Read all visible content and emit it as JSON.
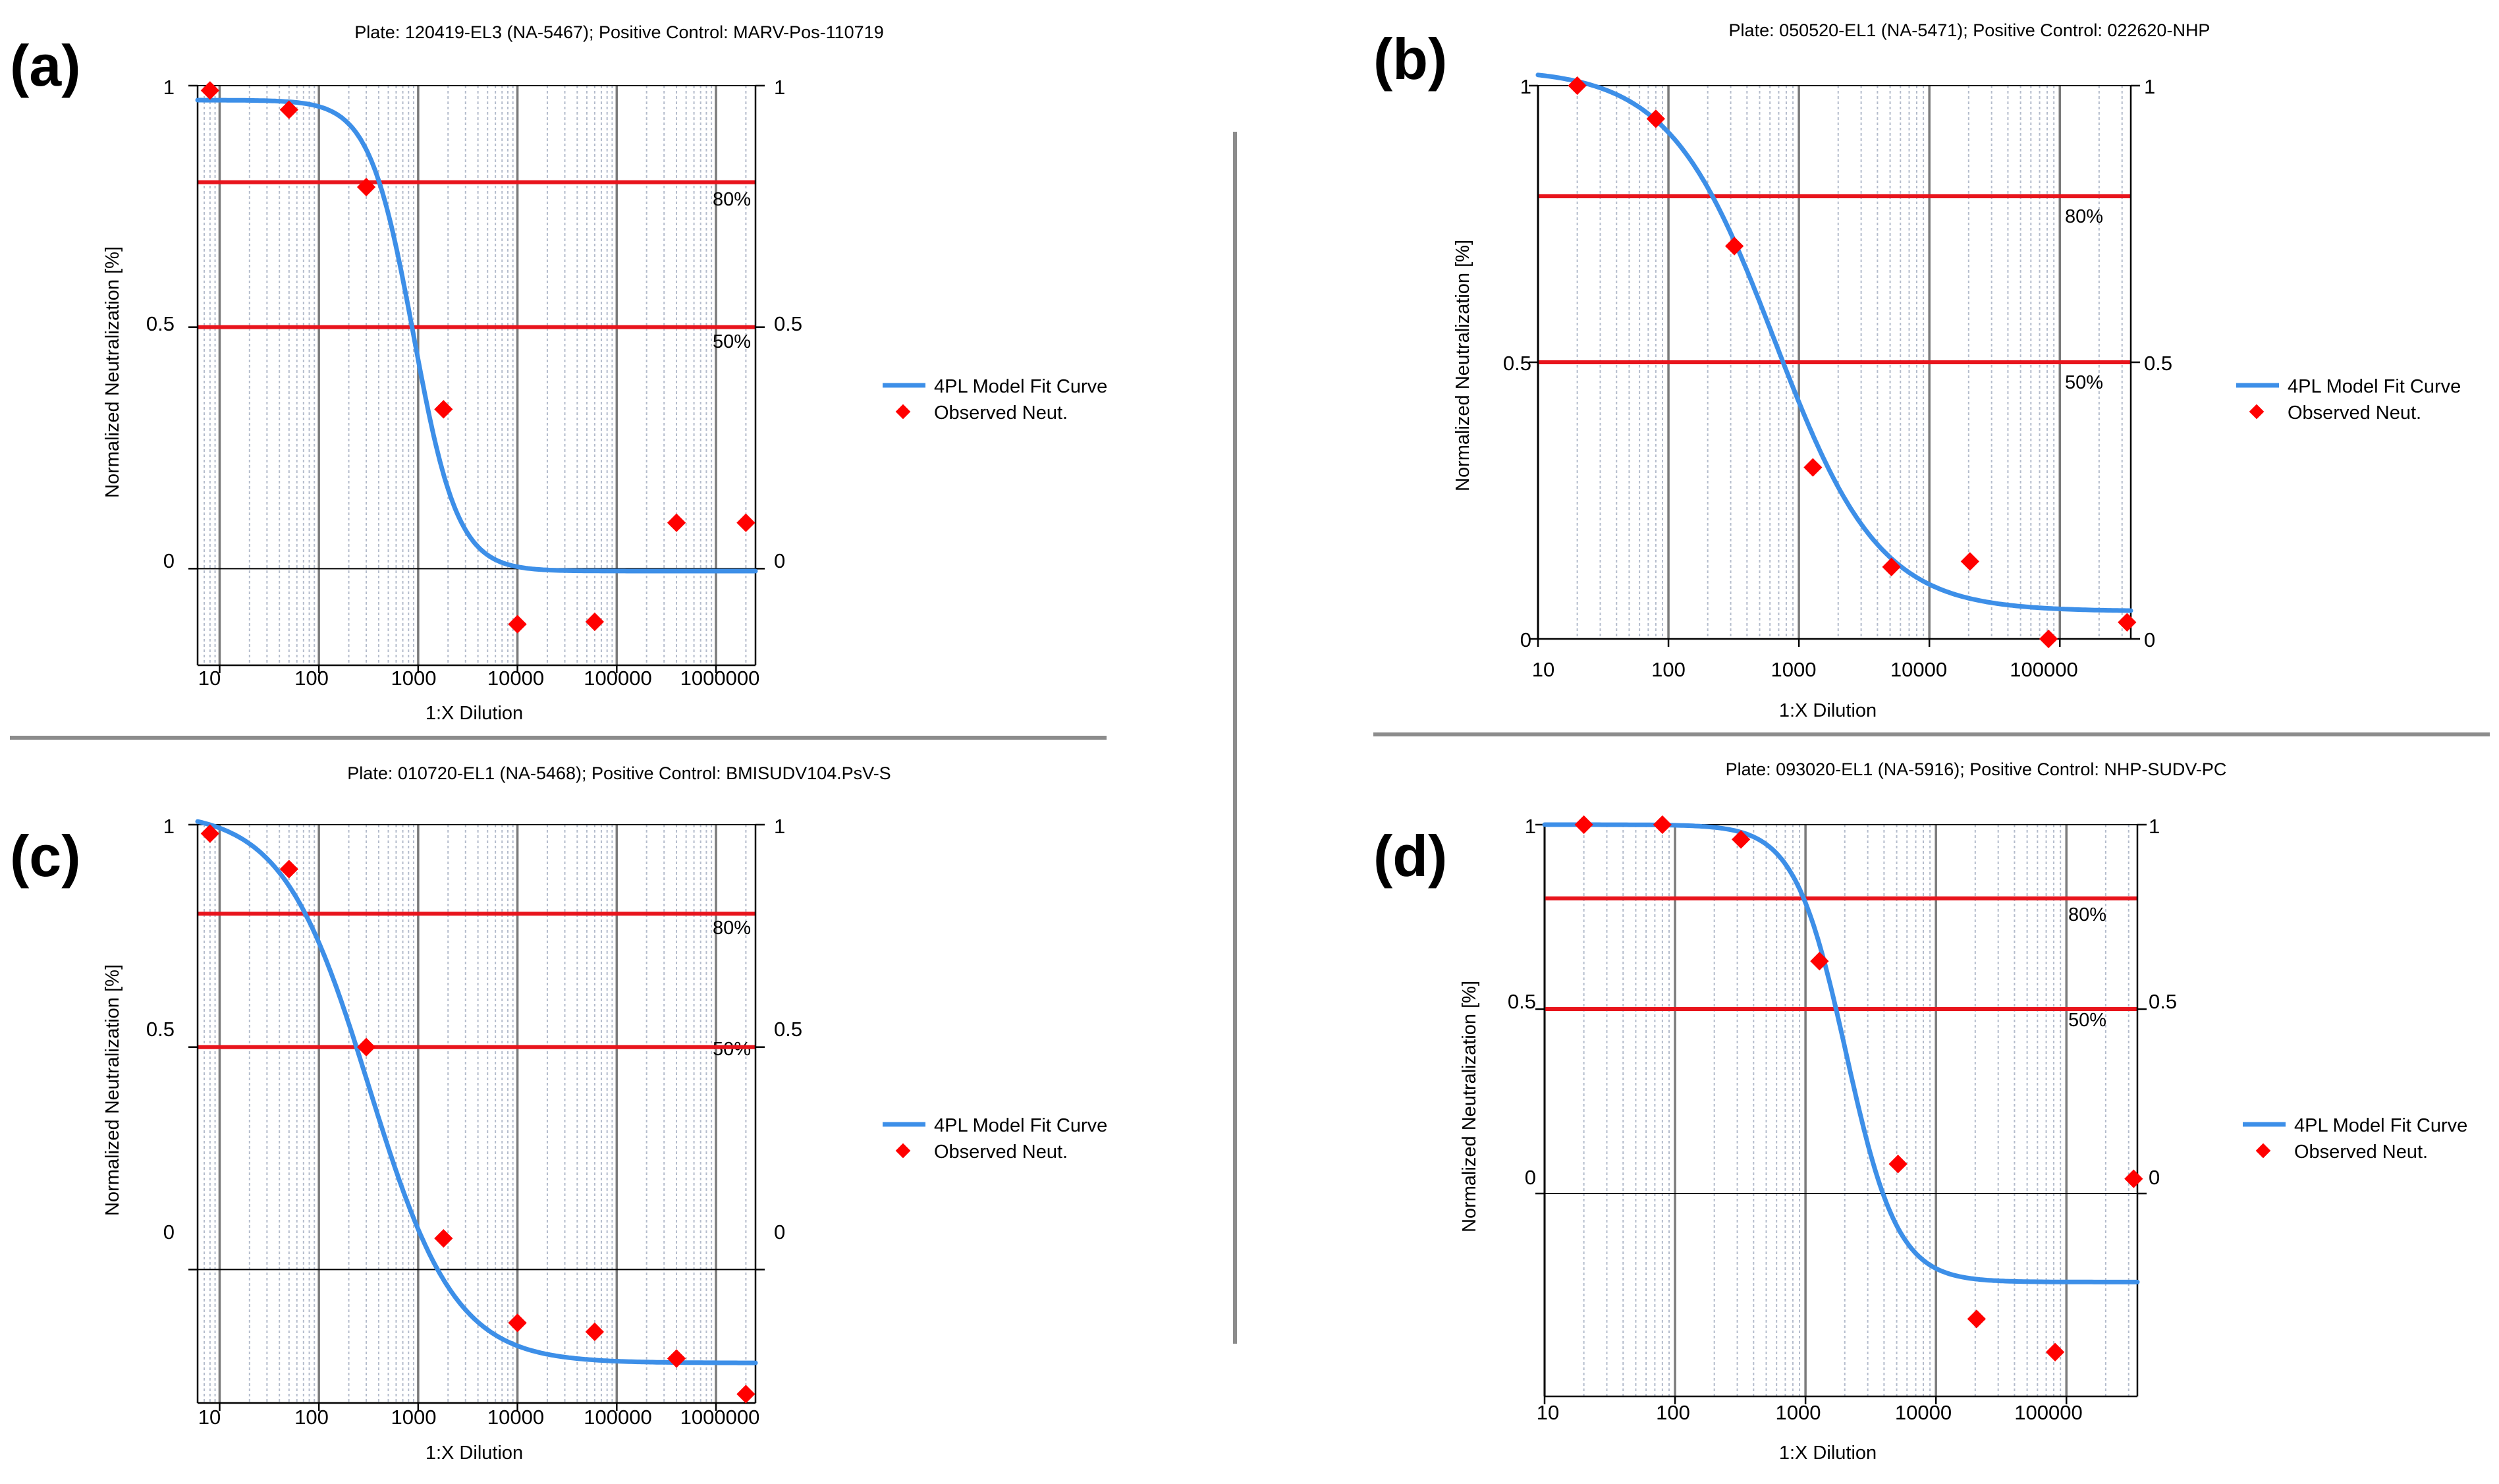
{
  "colors": {
    "curve": "#3d8fe8",
    "points": "#ff0000",
    "threshold": "#e8141c",
    "major_grid": "#7a7a7a",
    "minor_grid": "#b4bccc",
    "divider": "#8c8c8c"
  },
  "chart_data": [
    {
      "id": "a",
      "panel_label": "(a)",
      "type": "scatter",
      "title": "Plate: 120419-EL3 (NA-5467); Positive Control: MARV-Pos-110719",
      "xlabel": "1:X Dilution",
      "ylabel": "Normalized Neutralization [%]",
      "xscale": "log",
      "xlim": [
        6,
        2500000
      ],
      "ylim": [
        -0.2,
        1
      ],
      "x_ticks": [
        10,
        100,
        1000,
        10000,
        100000,
        1000000
      ],
      "x_tick_labels": [
        "10",
        "100",
        "1000",
        "10000",
        "100000",
        "1000000"
      ],
      "y_ticks": [
        0,
        0.5,
        1
      ],
      "y_tick_labels": [
        "0",
        "0.5",
        "1"
      ],
      "thresholds": [
        {
          "value": 0.8,
          "label": "80%"
        },
        {
          "value": 0.5,
          "label": "50%"
        }
      ],
      "curve": {
        "name": "4PL Model Fit Curve",
        "top": 0.97,
        "bottom": -0.005,
        "ec50": 900,
        "hill": 1.95
      },
      "observed": {
        "name": "Observed Neut.",
        "x": [
          8,
          50,
          300,
          1800,
          10000,
          60000,
          400000,
          2000000
        ],
        "y": [
          0.99,
          0.95,
          0.79,
          0.33,
          -0.115,
          -0.11,
          0.095,
          0.095
        ]
      },
      "legend": [
        "4PL Model Fit Curve",
        "Observed Neut."
      ]
    },
    {
      "id": "b",
      "panel_label": "(b)",
      "type": "scatter",
      "title": "Plate: 050520-EL1 (NA-5471); Positive Control: 022620-NHP",
      "xlabel": "1:X Dilution",
      "ylabel": "Normalized Neutralization [%]",
      "xscale": "log",
      "xlim": [
        10,
        350000
      ],
      "ylim": [
        0,
        1
      ],
      "x_ticks": [
        10,
        100,
        1000,
        10000,
        100000
      ],
      "x_tick_labels": [
        "10",
        "100",
        "1000",
        "10000",
        "100000"
      ],
      "y_ticks": [
        0,
        0.5,
        1
      ],
      "y_tick_labels": [
        "0",
        "0.5",
        "1"
      ],
      "thresholds": [
        {
          "value": 0.8,
          "label": "80%"
        },
        {
          "value": 0.5,
          "label": "50%"
        }
      ],
      "curve": {
        "name": "4PL Model Fit Curve",
        "top": 1.03,
        "bottom": 0.05,
        "ec50": 650,
        "hill": 1.08
      },
      "observed": {
        "name": "Observed Neut.",
        "x": [
          20,
          80,
          320,
          1280,
          5120,
          20480,
          81920,
          327680
        ],
        "y": [
          1.0,
          0.94,
          0.71,
          0.31,
          0.13,
          0.14,
          0.0,
          0.03
        ]
      },
      "legend": [
        "4PL Model Fit Curve",
        "Observed Neut."
      ]
    },
    {
      "id": "c",
      "panel_label": "(c)",
      "type": "scatter",
      "title": "Plate: 010720-EL1 (NA-5468); Positive Control: BMISUDV104.PsV-S",
      "xlabel": "1:X Dilution",
      "ylabel": "Normalized Neutralization [%]",
      "xscale": "log",
      "xlim": [
        6,
        2500000
      ],
      "ylim": [
        -0.3,
        1
      ],
      "x_ticks": [
        10,
        100,
        1000,
        10000,
        100000,
        1000000
      ],
      "x_tick_labels": [
        "10",
        "100",
        "1000",
        "10000",
        "100000",
        "1000000"
      ],
      "y_ticks": [
        0,
        0.5,
        1
      ],
      "y_tick_labels": [
        "0",
        "0.5",
        "1"
      ],
      "thresholds": [
        {
          "value": 0.8,
          "label": "80%"
        },
        {
          "value": 0.5,
          "label": "50%"
        }
      ],
      "curve": {
        "name": "4PL Model Fit Curve",
        "top": 1.03,
        "bottom": -0.21,
        "ec50": 320,
        "hill": 1.0
      },
      "observed": {
        "name": "Observed Neut.",
        "x": [
          8,
          50,
          300,
          1800,
          10000,
          60000,
          400000,
          2000000
        ],
        "y": [
          0.98,
          0.9,
          0.5,
          0.07,
          -0.12,
          -0.14,
          -0.2,
          -0.28
        ]
      },
      "legend": [
        "4PL Model Fit Curve",
        "Observed Neut."
      ]
    },
    {
      "id": "d",
      "panel_label": "(d)",
      "type": "scatter",
      "title": "Plate: 093020-EL1 (NA-5916); Positive Control: NHP-SUDV-PC",
      "xlabel": "1:X Dilution",
      "ylabel": "Normalized Neutralization [%]",
      "xscale": "log",
      "xlim": [
        10,
        350000
      ],
      "ylim": [
        -0.55,
        1
      ],
      "x_ticks": [
        10,
        100,
        1000,
        10000,
        100000
      ],
      "x_tick_labels": [
        "10",
        "100",
        "1000",
        "10000",
        "100000"
      ],
      "y_ticks": [
        0,
        0.5,
        1
      ],
      "y_tick_labels": [
        "0",
        "0.5",
        "1"
      ],
      "thresholds": [
        {
          "value": 0.8,
          "label": "80%"
        },
        {
          "value": 0.5,
          "label": "50%"
        }
      ],
      "curve": {
        "name": "4PL Model Fit Curve",
        "top": 1.0,
        "bottom": -0.24,
        "ec50": 2050,
        "hill": 2.2
      },
      "observed": {
        "name": "Observed Neut.",
        "x": [
          20,
          80,
          320,
          1280,
          5120,
          20480,
          81920,
          327680
        ],
        "y": [
          1.0,
          1.0,
          0.96,
          0.63,
          0.08,
          -0.34,
          -0.43,
          0.04
        ]
      },
      "legend": [
        "4PL Model Fit Curve",
        "Observed Neut."
      ]
    }
  ]
}
